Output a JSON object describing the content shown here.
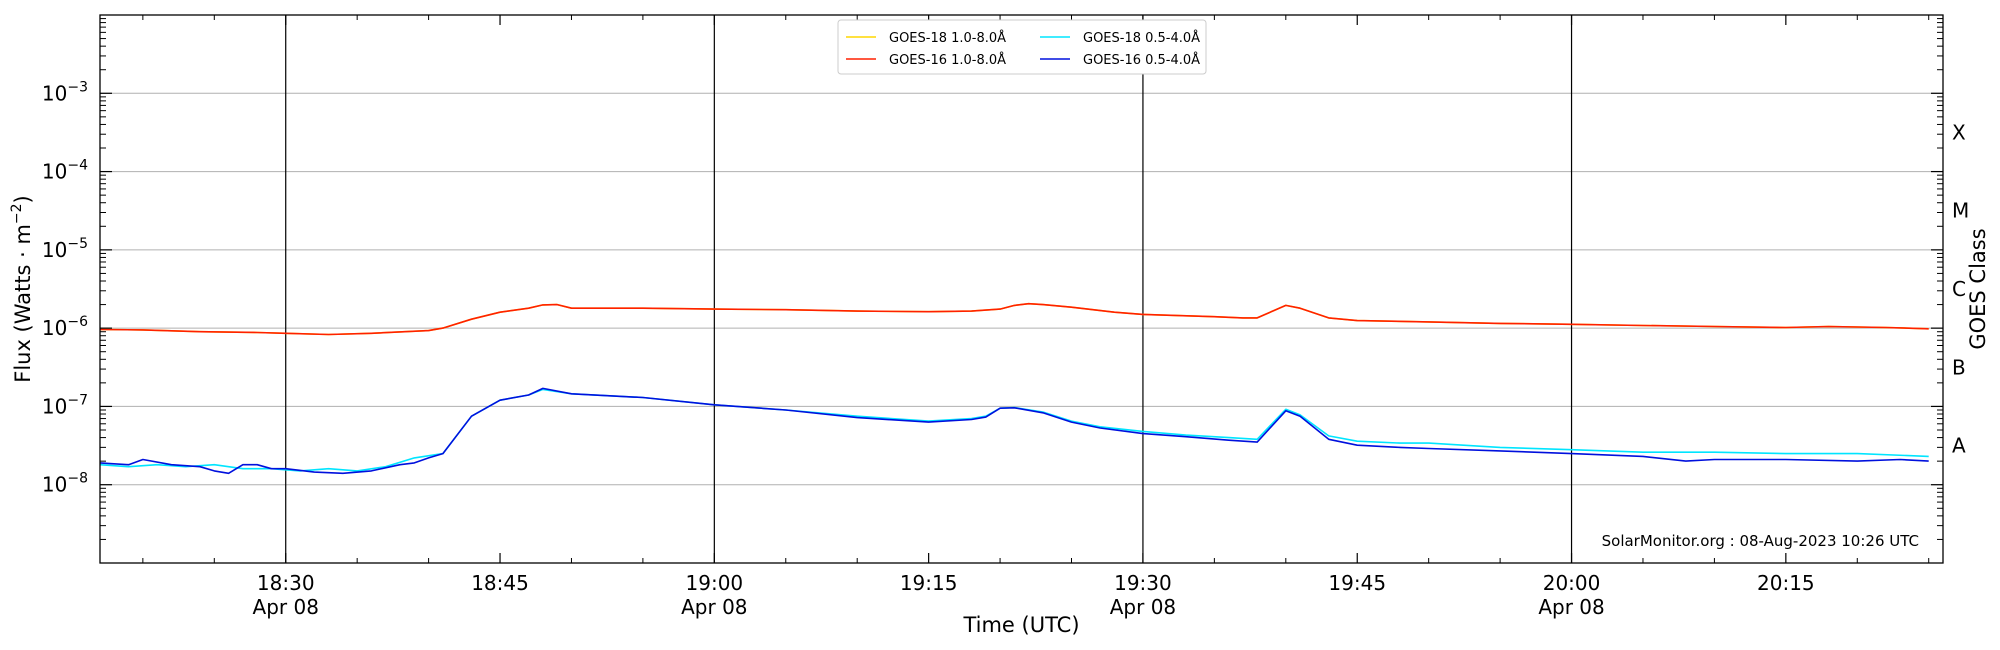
{
  "chart_data": {
    "type": "line",
    "y_scale": "log",
    "xlabel": "Time (UTC)",
    "ylabel_prefix": "Flux (Watts · m",
    "ylabel_exponent": "−2",
    "ylabel_suffix": ")",
    "right_label": "GOES Class",
    "credit": "SolarMonitor.org : 08-Aug-2023 10:26 UTC",
    "xlim": [
      "18:17",
      "20:26"
    ],
    "ylim": [
      1e-09,
      0.01
    ],
    "grid": "horizontal",
    "legend_placement": "top-center",
    "x_ticks": [
      {
        "time": "18:30",
        "label": "18:30",
        "date": "Apr 08",
        "major": true
      },
      {
        "time": "18:45",
        "label": "18:45",
        "date": "",
        "major": false
      },
      {
        "time": "19:00",
        "label": "19:00",
        "date": "Apr 08",
        "major": true
      },
      {
        "time": "19:15",
        "label": "19:15",
        "date": "",
        "major": false
      },
      {
        "time": "19:30",
        "label": "19:30",
        "date": "Apr 08",
        "major": true
      },
      {
        "time": "19:45",
        "label": "19:45",
        "date": "",
        "major": false
      },
      {
        "time": "20:00",
        "label": "20:00",
        "date": "Apr 08",
        "major": true
      },
      {
        "time": "20:15",
        "label": "20:15",
        "date": "",
        "major": false
      }
    ],
    "y_ticks": [
      {
        "value": 1e-08,
        "base": "10",
        "exp": "−8"
      },
      {
        "value": 1e-07,
        "base": "10",
        "exp": "−7"
      },
      {
        "value": 1e-06,
        "base": "10",
        "exp": "−6"
      },
      {
        "value": 1e-05,
        "base": "10",
        "exp": "−5"
      },
      {
        "value": 0.0001,
        "base": "10",
        "exp": "−4"
      },
      {
        "value": 0.001,
        "base": "10",
        "exp": "−3"
      }
    ],
    "goes_classes": [
      {
        "label": "A",
        "value": 3.16e-08
      },
      {
        "label": "B",
        "value": 3.16e-07
      },
      {
        "label": "C",
        "value": 3.16e-06
      },
      {
        "label": "M",
        "value": 3.16e-05
      },
      {
        "label": "X",
        "value": 0.000316
      }
    ],
    "legend": [
      {
        "name": "GOES-18 1.0-8.0Å",
        "color": "#ffd700"
      },
      {
        "name": "GOES-18 0.5-4.0Å",
        "color": "#00e5ff"
      },
      {
        "name": "GOES-16 1.0-8.0Å",
        "color": "#ff2000"
      },
      {
        "name": "GOES-16 0.5-4.0Å",
        "color": "#0010dd"
      }
    ],
    "series": [
      {
        "name": "GOES-18 1.0-8.0Å",
        "color": "#ffd700",
        "points": [
          [
            "18:17",
            9.6e-07
          ],
          [
            "18:20",
            9.5e-07
          ],
          [
            "18:24",
            9e-07
          ],
          [
            "18:28",
            8.8e-07
          ],
          [
            "18:30",
            8.6e-07
          ],
          [
            "18:33",
            8.3e-07
          ],
          [
            "18:36",
            8.6e-07
          ],
          [
            "18:40",
            9.3e-07
          ],
          [
            "18:41",
            1e-06
          ],
          [
            "18:43",
            1.3e-06
          ],
          [
            "18:45",
            1.6e-06
          ],
          [
            "18:47",
            1.8e-06
          ],
          [
            "18:48",
            1.98e-06
          ],
          [
            "18:49",
            2e-06
          ],
          [
            "18:50",
            1.8e-06
          ],
          [
            "18:55",
            1.8e-06
          ],
          [
            "19:00",
            1.75e-06
          ],
          [
            "19:05",
            1.72e-06
          ],
          [
            "19:10",
            1.65e-06
          ],
          [
            "19:15",
            1.62e-06
          ],
          [
            "19:18",
            1.65e-06
          ],
          [
            "19:20",
            1.75e-06
          ],
          [
            "19:21",
            1.95e-06
          ],
          [
            "19:22",
            2.05e-06
          ],
          [
            "19:23",
            2e-06
          ],
          [
            "19:25",
            1.85e-06
          ],
          [
            "19:28",
            1.6e-06
          ],
          [
            "19:30",
            1.5e-06
          ],
          [
            "19:35",
            1.4e-06
          ],
          [
            "19:37",
            1.35e-06
          ],
          [
            "19:38",
            1.35e-06
          ],
          [
            "19:40",
            1.95e-06
          ],
          [
            "19:41",
            1.8e-06
          ],
          [
            "19:43",
            1.35e-06
          ],
          [
            "19:45",
            1.25e-06
          ],
          [
            "19:50",
            1.2e-06
          ],
          [
            "19:55",
            1.15e-06
          ],
          [
            "20:00",
            1.12e-06
          ],
          [
            "20:05",
            1.08e-06
          ],
          [
            "20:10",
            1.05e-06
          ],
          [
            "20:15",
            1.02e-06
          ],
          [
            "20:18",
            1.05e-06
          ],
          [
            "20:22",
            1.02e-06
          ],
          [
            "20:25",
            9.8e-07
          ]
        ]
      },
      {
        "name": "GOES-16 1.0-8.0Å",
        "color": "#ff2000",
        "points": [
          [
            "18:17",
            9.6e-07
          ],
          [
            "18:20",
            9.5e-07
          ],
          [
            "18:24",
            9e-07
          ],
          [
            "18:28",
            8.8e-07
          ],
          [
            "18:30",
            8.6e-07
          ],
          [
            "18:33",
            8.3e-07
          ],
          [
            "18:36",
            8.6e-07
          ],
          [
            "18:40",
            9.3e-07
          ],
          [
            "18:41",
            1e-06
          ],
          [
            "18:43",
            1.3e-06
          ],
          [
            "18:45",
            1.6e-06
          ],
          [
            "18:47",
            1.8e-06
          ],
          [
            "18:48",
            1.98e-06
          ],
          [
            "18:49",
            2e-06
          ],
          [
            "18:50",
            1.8e-06
          ],
          [
            "18:55",
            1.8e-06
          ],
          [
            "19:00",
            1.75e-06
          ],
          [
            "19:05",
            1.72e-06
          ],
          [
            "19:10",
            1.65e-06
          ],
          [
            "19:15",
            1.62e-06
          ],
          [
            "19:18",
            1.65e-06
          ],
          [
            "19:20",
            1.75e-06
          ],
          [
            "19:21",
            1.95e-06
          ],
          [
            "19:22",
            2.05e-06
          ],
          [
            "19:23",
            2e-06
          ],
          [
            "19:25",
            1.85e-06
          ],
          [
            "19:28",
            1.6e-06
          ],
          [
            "19:30",
            1.5e-06
          ],
          [
            "19:35",
            1.4e-06
          ],
          [
            "19:37",
            1.35e-06
          ],
          [
            "19:38",
            1.35e-06
          ],
          [
            "19:40",
            1.95e-06
          ],
          [
            "19:41",
            1.8e-06
          ],
          [
            "19:43",
            1.35e-06
          ],
          [
            "19:45",
            1.25e-06
          ],
          [
            "19:50",
            1.2e-06
          ],
          [
            "19:55",
            1.15e-06
          ],
          [
            "20:00",
            1.12e-06
          ],
          [
            "20:05",
            1.08e-06
          ],
          [
            "20:10",
            1.05e-06
          ],
          [
            "20:15",
            1.02e-06
          ],
          [
            "20:18",
            1.05e-06
          ],
          [
            "20:22",
            1.02e-06
          ],
          [
            "20:25",
            9.8e-07
          ]
        ]
      },
      {
        "name": "GOES-18 0.5-4.0Å",
        "color": "#00e5ff",
        "points": [
          [
            "18:17",
            1.8e-08
          ],
          [
            "18:19",
            1.7e-08
          ],
          [
            "18:21",
            1.8e-08
          ],
          [
            "18:23",
            1.7e-08
          ],
          [
            "18:25",
            1.8e-08
          ],
          [
            "18:27",
            1.6e-08
          ],
          [
            "18:29",
            1.6e-08
          ],
          [
            "18:31",
            1.5e-08
          ],
          [
            "18:33",
            1.6e-08
          ],
          [
            "18:35",
            1.5e-08
          ],
          [
            "18:37",
            1.7e-08
          ],
          [
            "18:39",
            2.2e-08
          ],
          [
            "18:41",
            2.5e-08
          ],
          [
            "18:43",
            7.5e-08
          ],
          [
            "18:45",
            1.2e-07
          ],
          [
            "18:47",
            1.4e-07
          ],
          [
            "18:48",
            1.65e-07
          ],
          [
            "18:50",
            1.45e-07
          ],
          [
            "18:55",
            1.3e-07
          ],
          [
            "19:00",
            1.05e-07
          ],
          [
            "19:05",
            9e-08
          ],
          [
            "19:10",
            7.5e-08
          ],
          [
            "19:15",
            6.5e-08
          ],
          [
            "19:18",
            7e-08
          ],
          [
            "19:19",
            7.5e-08
          ],
          [
            "19:20",
            9.5e-08
          ],
          [
            "19:21",
            9.7e-08
          ],
          [
            "19:23",
            8.5e-08
          ],
          [
            "19:25",
            6.5e-08
          ],
          [
            "19:27",
            5.5e-08
          ],
          [
            "19:30",
            4.8e-08
          ],
          [
            "19:33",
            4.3e-08
          ],
          [
            "19:36",
            4e-08
          ],
          [
            "19:38",
            3.8e-08
          ],
          [
            "19:40",
            9.2e-08
          ],
          [
            "19:41",
            7.8e-08
          ],
          [
            "19:43",
            4.2e-08
          ],
          [
            "19:45",
            3.6e-08
          ],
          [
            "19:48",
            3.4e-08
          ],
          [
            "19:50",
            3.4e-08
          ],
          [
            "19:55",
            3e-08
          ],
          [
            "20:00",
            2.8e-08
          ],
          [
            "20:05",
            2.6e-08
          ],
          [
            "20:10",
            2.6e-08
          ],
          [
            "20:15",
            2.5e-08
          ],
          [
            "20:20",
            2.5e-08
          ],
          [
            "20:25",
            2.3e-08
          ]
        ]
      },
      {
        "name": "GOES-16 0.5-4.0Å",
        "color": "#0010dd",
        "points": [
          [
            "18:17",
            1.9e-08
          ],
          [
            "18:19",
            1.8e-08
          ],
          [
            "18:20",
            2.1e-08
          ],
          [
            "18:22",
            1.8e-08
          ],
          [
            "18:24",
            1.7e-08
          ],
          [
            "18:25",
            1.5e-08
          ],
          [
            "18:26",
            1.4e-08
          ],
          [
            "18:27",
            1.8e-08
          ],
          [
            "18:28",
            1.8e-08
          ],
          [
            "18:29",
            1.6e-08
          ],
          [
            "18:30",
            1.6e-08
          ],
          [
            "18:32",
            1.45e-08
          ],
          [
            "18:34",
            1.4e-08
          ],
          [
            "18:36",
            1.5e-08
          ],
          [
            "18:38",
            1.8e-08
          ],
          [
            "18:39",
            1.9e-08
          ],
          [
            "18:40",
            2.2e-08
          ],
          [
            "18:41",
            2.5e-08
          ],
          [
            "18:43",
            7.5e-08
          ],
          [
            "18:45",
            1.2e-07
          ],
          [
            "18:47",
            1.4e-07
          ],
          [
            "18:48",
            1.7e-07
          ],
          [
            "18:50",
            1.45e-07
          ],
          [
            "18:55",
            1.3e-07
          ],
          [
            "19:00",
            1.05e-07
          ],
          [
            "19:05",
            9e-08
          ],
          [
            "19:10",
            7.2e-08
          ],
          [
            "19:15",
            6.3e-08
          ],
          [
            "19:18",
            6.8e-08
          ],
          [
            "19:19",
            7.3e-08
          ],
          [
            "19:20",
            9.5e-08
          ],
          [
            "19:21",
            9.6e-08
          ],
          [
            "19:23",
            8.3e-08
          ],
          [
            "19:25",
            6.3e-08
          ],
          [
            "19:27",
            5.3e-08
          ],
          [
            "19:30",
            4.5e-08
          ],
          [
            "19:33",
            4.1e-08
          ],
          [
            "19:36",
            3.7e-08
          ],
          [
            "19:38",
            3.5e-08
          ],
          [
            "19:40",
            8.8e-08
          ],
          [
            "19:41",
            7.5e-08
          ],
          [
            "19:43",
            3.8e-08
          ],
          [
            "19:45",
            3.2e-08
          ],
          [
            "19:48",
            3e-08
          ],
          [
            "19:50",
            2.9e-08
          ],
          [
            "19:55",
            2.7e-08
          ],
          [
            "20:00",
            2.5e-08
          ],
          [
            "20:05",
            2.3e-08
          ],
          [
            "20:08",
            2e-08
          ],
          [
            "20:10",
            2.1e-08
          ],
          [
            "20:15",
            2.1e-08
          ],
          [
            "20:20",
            2e-08
          ],
          [
            "20:23",
            2.1e-08
          ],
          [
            "20:25",
            2e-08
          ]
        ]
      }
    ]
  }
}
